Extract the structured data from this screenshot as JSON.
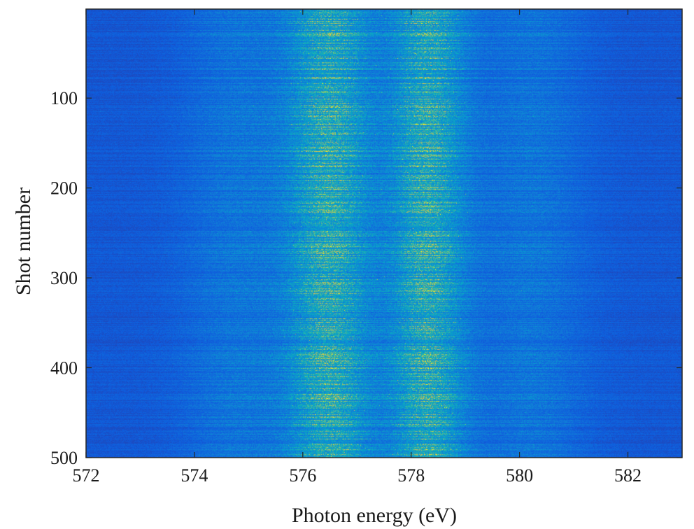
{
  "chart_data": {
    "type": "heatmap",
    "title": "",
    "xlabel": "Photon energy (eV)",
    "ylabel": "Shot number",
    "xlim": [
      572,
      583
    ],
    "ylim": [
      1,
      500
    ],
    "y_reversed": true,
    "grid": false,
    "colormap": "parula",
    "x_ticks": [
      572,
      574,
      576,
      578,
      580,
      582
    ],
    "y_ticks": [
      100,
      200,
      300,
      400,
      500
    ],
    "background_color": "#3a4fa8",
    "peaks": [
      {
        "center_eV": 576.5,
        "width_eV": 0.55,
        "relative_intensity": 1.0
      },
      {
        "center_eV": 578.3,
        "width_eV": 0.5,
        "relative_intensity": 1.0
      },
      {
        "center_eV": 574.8,
        "width_eV": 0.7,
        "relative_intensity": 0.3
      },
      {
        "center_eV": 580.2,
        "width_eV": 0.7,
        "relative_intensity": 0.3
      }
    ]
  }
}
